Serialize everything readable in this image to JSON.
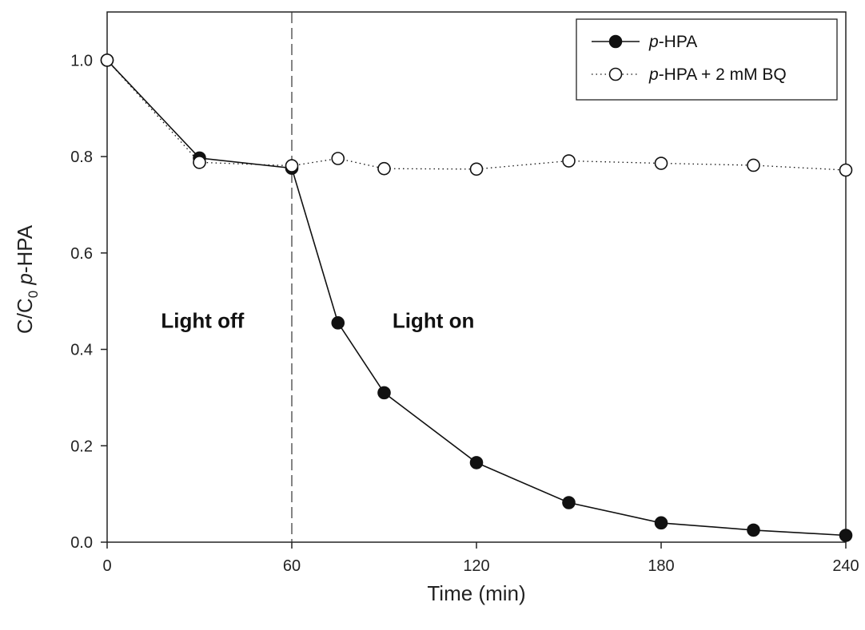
{
  "chart_data": {
    "type": "line",
    "xlabel": "Time (min)",
    "ylabel": {
      "prefix": "C/C",
      "subscript": "0",
      "italic_part": "p",
      "suffix": "-HPA"
    },
    "xlim": [
      0,
      240
    ],
    "ylim": [
      0,
      1.1
    ],
    "x_ticks": [
      0,
      60,
      120,
      180,
      240
    ],
    "x_tick_labels": [
      "0",
      "60",
      "120",
      "180",
      "240"
    ],
    "y_ticks": [
      0,
      0.2,
      0.4,
      0.6,
      0.8,
      1.0
    ],
    "y_tick_labels": [
      "0.0",
      "0.2",
      "0.4",
      "0.6",
      "0.8",
      "1.0"
    ],
    "grid": false,
    "legend_position": "top-right",
    "vertical_line": {
      "x": 60,
      "style": "dashed"
    },
    "annotations": [
      {
        "text": "Light off",
        "x": 31,
        "y": 0.445
      },
      {
        "text": "Light on",
        "x": 106,
        "y": 0.445
      }
    ],
    "series": [
      {
        "name": "p-HPA",
        "name_italic_part": "p",
        "name_rest": "-HPA",
        "marker": "filled-circle",
        "line": "solid",
        "color": "#111111",
        "x": [
          0,
          30,
          60,
          75,
          90,
          120,
          150,
          180,
          210,
          240
        ],
        "y": [
          1.0,
          0.797,
          0.776,
          0.455,
          0.31,
          0.165,
          0.082,
          0.04,
          0.025,
          0.014
        ]
      },
      {
        "name": "p-HPA + 2 mM BQ",
        "name_italic_part": "p",
        "name_rest": "-HPA + 2 mM BQ",
        "marker": "open-circle",
        "line": "dotted",
        "color": "#111111",
        "x": [
          0,
          30,
          60,
          75,
          90,
          120,
          150,
          180,
          210,
          240
        ],
        "y": [
          1.0,
          0.788,
          0.781,
          0.796,
          0.775,
          0.774,
          0.791,
          0.786,
          0.782,
          0.772
        ]
      }
    ]
  }
}
